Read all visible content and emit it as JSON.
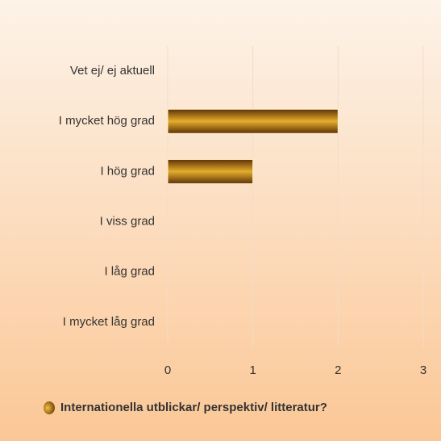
{
  "chart_data": {
    "type": "bar",
    "orientation": "horizontal",
    "categories": [
      "Vet ej/ ej aktuell",
      "I mycket hög grad",
      "I hög grad",
      "I viss grad",
      "I låg grad",
      "I mycket låg grad"
    ],
    "series": [
      {
        "name": "Internationella utblickar/ perspektiv/ litteratur?",
        "color": "#c8901a",
        "values": [
          0,
          2,
          1,
          0,
          0,
          0
        ]
      }
    ],
    "xlim": [
      0,
      3
    ],
    "xticks": [
      0,
      1,
      2,
      3
    ],
    "grid": true,
    "legend": "bottom"
  }
}
